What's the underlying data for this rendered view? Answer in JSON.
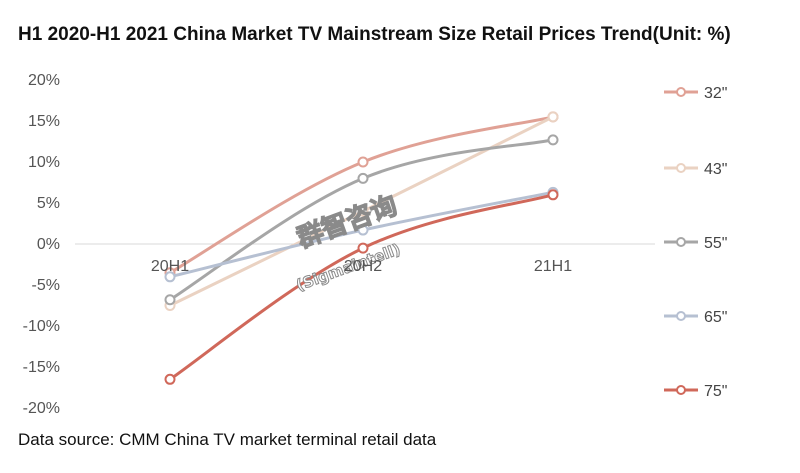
{
  "title": "H1 2020-H1 2021 China Market TV Mainstream Size Retail Prices Trend(Unit: %)",
  "source": "Data source: CMM China TV market terminal retail data",
  "watermark": {
    "main": "群智咨询",
    "sub": "(Sigmaintell)"
  },
  "chart_data": {
    "type": "line",
    "categories": [
      "20H1",
      "20H2",
      "21H1"
    ],
    "y_ticks": [
      "20%",
      "15%",
      "10%",
      "5%",
      "0%",
      "-5%",
      "-10%",
      "-15%",
      "-20%"
    ],
    "ylim": [
      -20,
      20
    ],
    "grid": false,
    "legend_position": "right",
    "series": [
      {
        "name": "32\"",
        "values": [
          -3.5,
          10,
          15.5
        ],
        "color": "#e0a195"
      },
      {
        "name": "43\"",
        "values": [
          -7.5,
          4,
          15.5
        ],
        "color": "#ead2c2"
      },
      {
        "name": "55\"",
        "values": [
          -6.8,
          8,
          12.7
        ],
        "color": "#a6a6a6"
      },
      {
        "name": "65\"",
        "values": [
          -4,
          1.7,
          6.3
        ],
        "color": "#b6c0d2"
      },
      {
        "name": "75\"",
        "values": [
          -16.5,
          -0.5,
          6
        ],
        "color": "#d0685a"
      }
    ]
  }
}
